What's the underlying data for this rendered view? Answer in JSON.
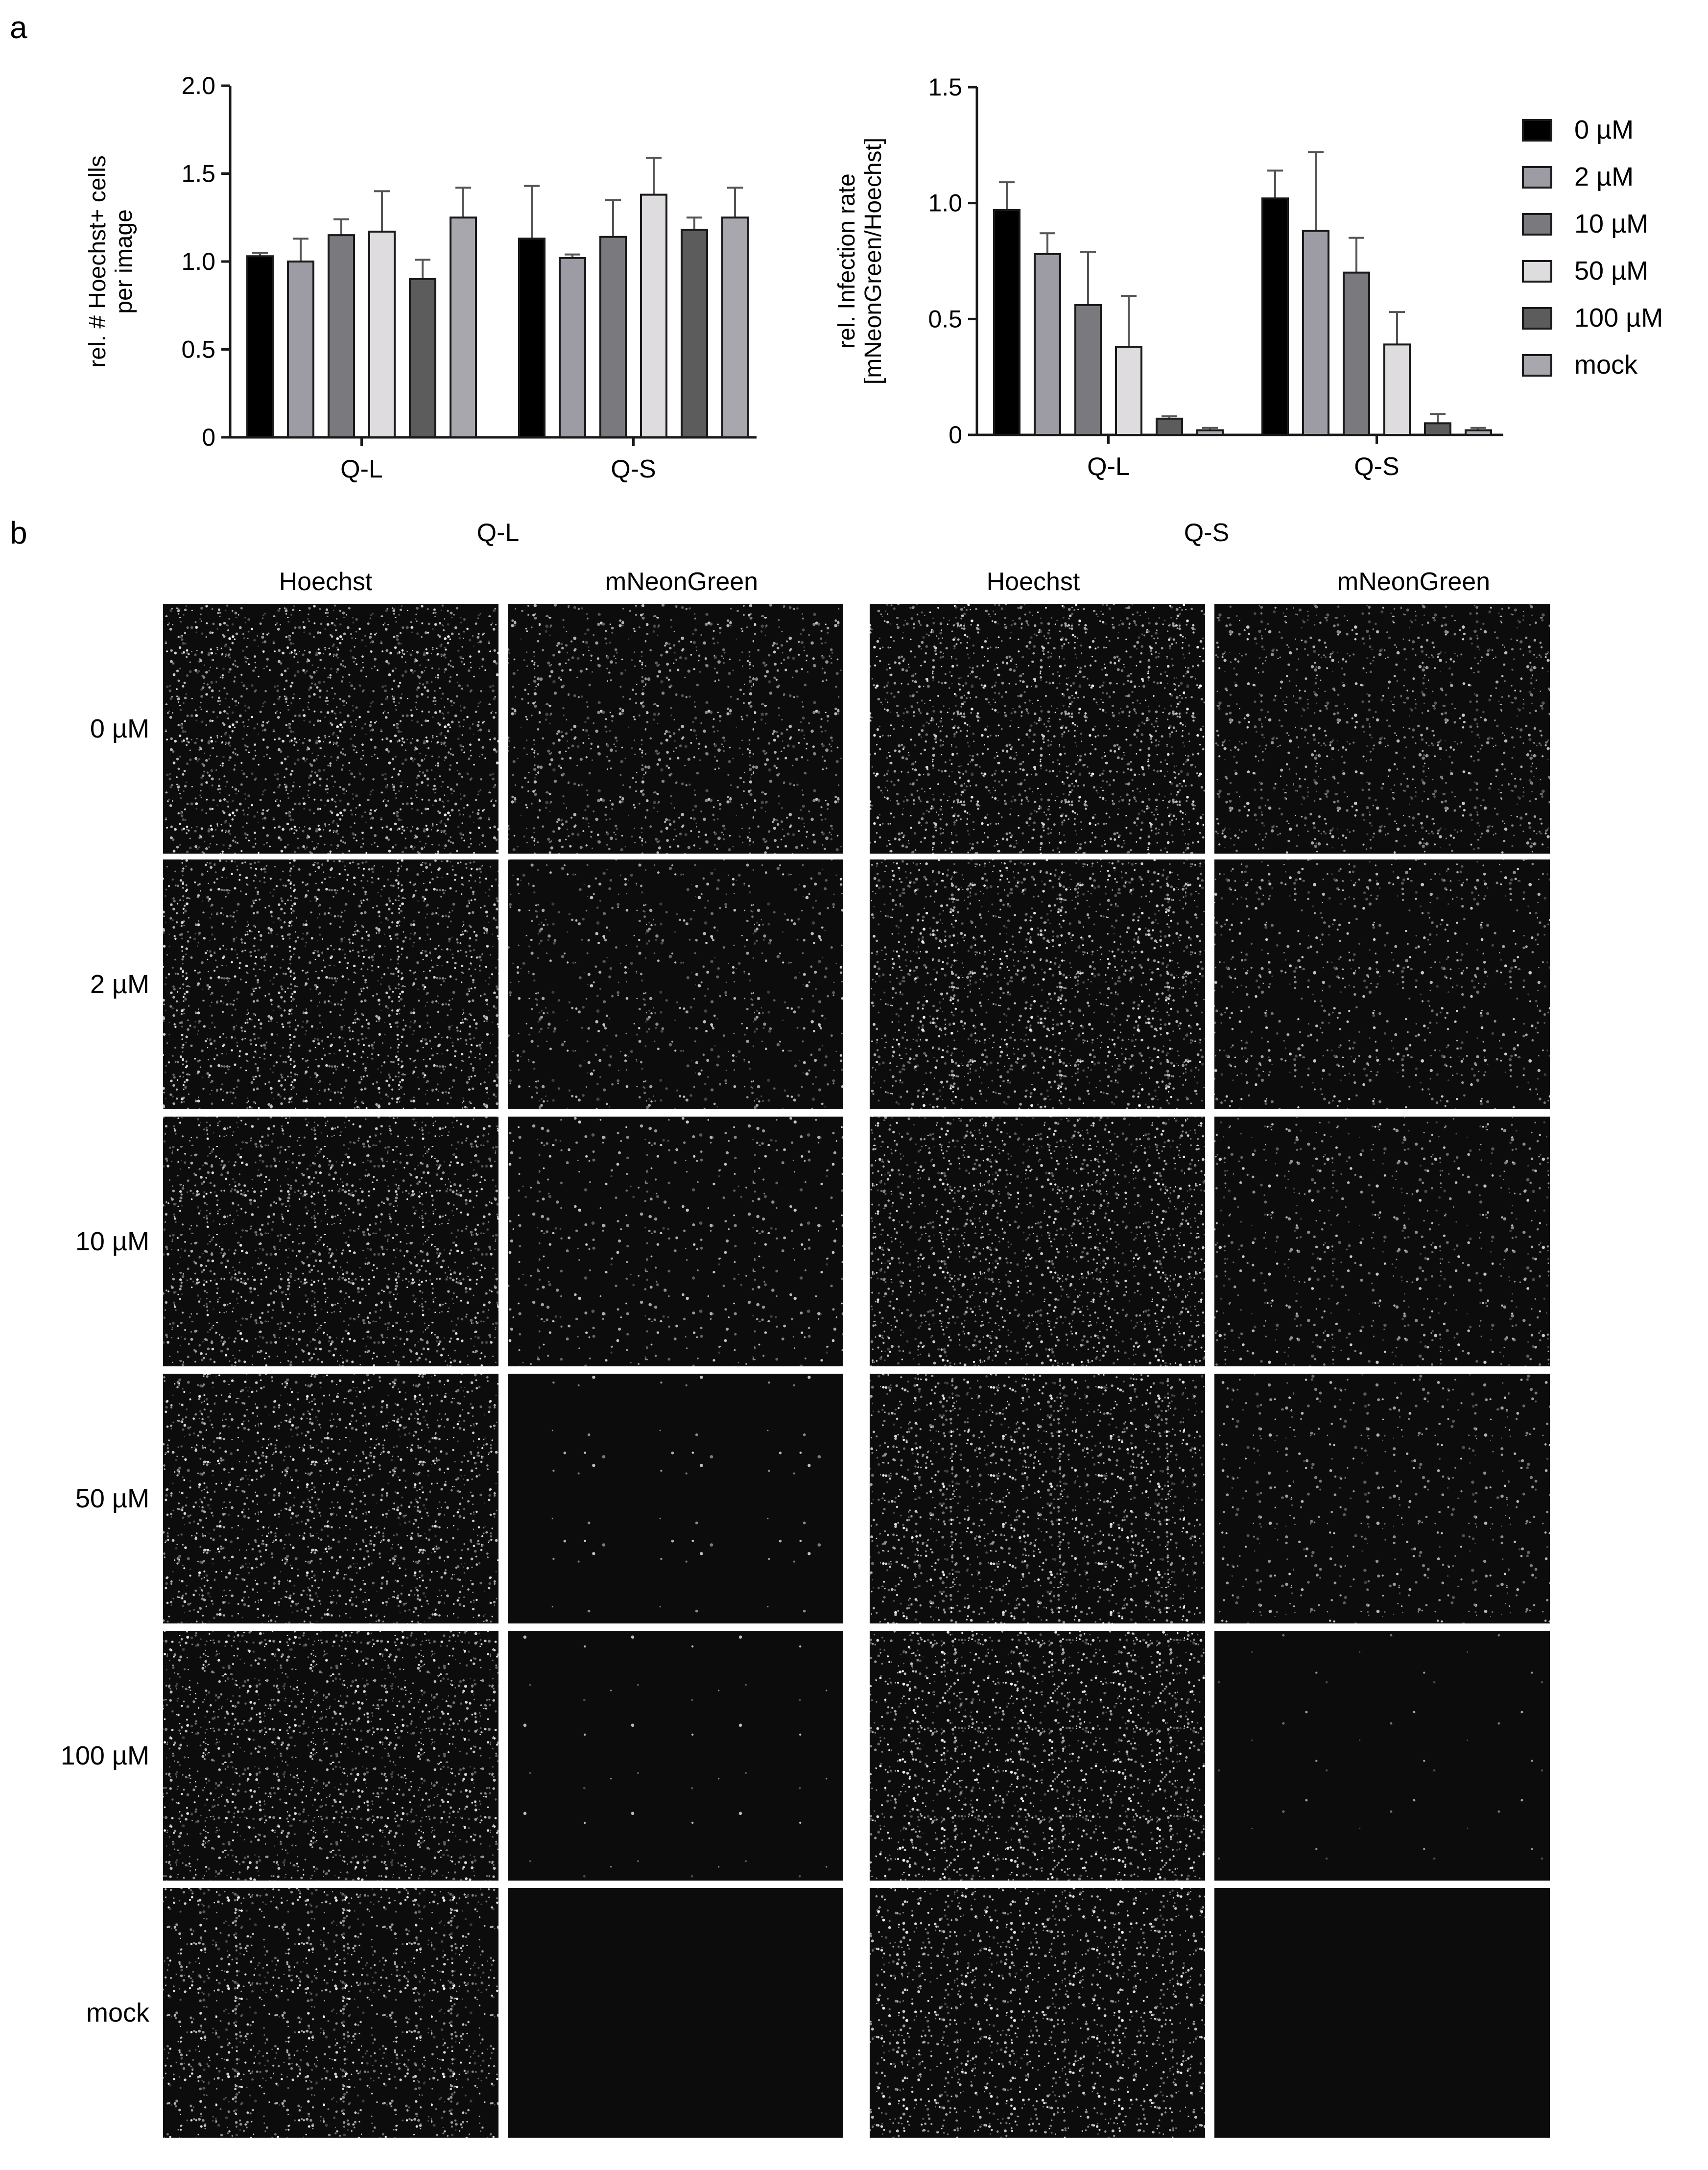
{
  "panel_labels": {
    "a": "a",
    "b": "b"
  },
  "legend": [
    {
      "label": "0 µM",
      "color": "#000000"
    },
    {
      "label": "2 µM",
      "color": "#9d9ba3"
    },
    {
      "label": "10 µM",
      "color": "#7a797e"
    },
    {
      "label": "50 µM",
      "color": "#dedcdf"
    },
    {
      "label": "100 µM",
      "color": "#5c5c5c"
    },
    {
      "label": "mock",
      "color": "#a8a7ad"
    }
  ],
  "chart_data": [
    {
      "type": "bar",
      "title": "",
      "xlabel": "",
      "ylabel": "rel. # Hoechst+ cells per image",
      "ylabel_lines": [
        "rel. # Hoechst+ cells",
        "per image"
      ],
      "ylim": [
        0,
        2.0
      ],
      "yticks": [
        "0",
        "0.5",
        "1.0",
        "1.5",
        "2.0"
      ],
      "ytick_values": [
        0,
        0.5,
        1.0,
        1.5,
        2.0
      ],
      "categories": [
        "Q-L",
        "Q-S"
      ],
      "series": [
        {
          "name": "0 µM",
          "values": [
            1.03,
            1.13
          ],
          "errors": [
            0.02,
            0.3
          ]
        },
        {
          "name": "2 µM",
          "values": [
            1.0,
            1.02
          ],
          "errors": [
            0.13,
            0.02
          ]
        },
        {
          "name": "10 µM",
          "values": [
            1.15,
            1.14
          ],
          "errors": [
            0.09,
            0.21
          ]
        },
        {
          "name": "50 µM",
          "values": [
            1.17,
            1.38
          ],
          "errors": [
            0.23,
            0.21
          ]
        },
        {
          "name": "100 µM",
          "values": [
            0.9,
            1.18
          ],
          "errors": [
            0.11,
            0.07
          ]
        },
        {
          "name": "mock",
          "values": [
            1.25,
            1.25
          ],
          "errors": [
            0.17,
            0.17
          ]
        }
      ]
    },
    {
      "type": "bar",
      "title": "",
      "xlabel": "",
      "ylabel": "rel. Infection rate [mNeonGreen/Hoechst]",
      "ylabel_lines": [
        "rel. Infection rate",
        "[mNeonGreen/Hoechst]"
      ],
      "ylim": [
        0,
        1.5
      ],
      "yticks": [
        "0",
        "0.5",
        "1.0",
        "1.5"
      ],
      "ytick_values": [
        0,
        0.5,
        1.0,
        1.5
      ],
      "categories": [
        "Q-L",
        "Q-S"
      ],
      "series": [
        {
          "name": "0 µM",
          "values": [
            0.97,
            1.02
          ],
          "errors": [
            0.12,
            0.12
          ]
        },
        {
          "name": "2 µM",
          "values": [
            0.78,
            0.88
          ],
          "errors": [
            0.09,
            0.34
          ]
        },
        {
          "name": "10 µM",
          "values": [
            0.56,
            0.7
          ],
          "errors": [
            0.23,
            0.15
          ]
        },
        {
          "name": "50 µM",
          "values": [
            0.38,
            0.39
          ],
          "errors": [
            0.22,
            0.14
          ]
        },
        {
          "name": "100 µM",
          "values": [
            0.07,
            0.05
          ],
          "errors": [
            0.01,
            0.04
          ]
        },
        {
          "name": "mock",
          "values": [
            0.02,
            0.02
          ],
          "errors": [
            0.01,
            0.01
          ]
        }
      ]
    }
  ],
  "micrographs": {
    "group_titles": [
      "Q-L",
      "Q-S"
    ],
    "channel_headers": [
      "Hoechst",
      "mNeonGreen",
      "Hoechst",
      "mNeonGreen"
    ],
    "rows": [
      "0 µM",
      "2 µM",
      "10 µM",
      "50 µM",
      "100  µM",
      "mock"
    ],
    "green_intensity": [
      0.85,
      0.55,
      0.4,
      0.05,
      0.03,
      0.0
    ],
    "green_intensity_qs": [
      0.85,
      0.6,
      0.55,
      0.45,
      0.03,
      0.0
    ],
    "hoechst_intensity": [
      0.8,
      0.8,
      0.8,
      0.8,
      0.85,
      0.75
    ]
  }
}
